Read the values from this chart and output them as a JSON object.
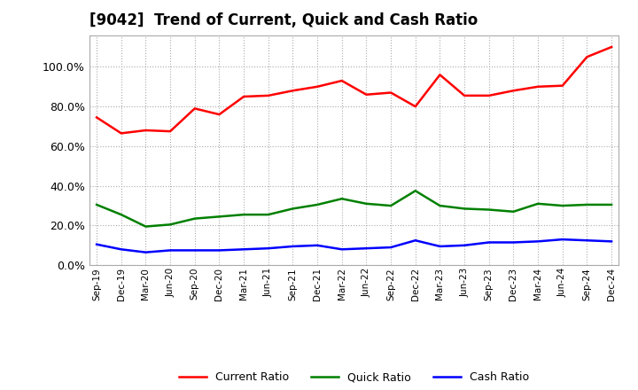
{
  "title": "[9042]  Trend of Current, Quick and Cash Ratio",
  "x_labels": [
    "Sep-19",
    "Dec-19",
    "Mar-20",
    "Jun-20",
    "Sep-20",
    "Dec-20",
    "Mar-21",
    "Jun-21",
    "Sep-21",
    "Dec-21",
    "Mar-22",
    "Jun-22",
    "Sep-22",
    "Dec-22",
    "Mar-23",
    "Jun-23",
    "Sep-23",
    "Dec-23",
    "Mar-24",
    "Jun-24",
    "Sep-24",
    "Dec-24"
  ],
  "current_ratio": [
    74.5,
    66.5,
    68.0,
    67.5,
    79.0,
    76.0,
    85.0,
    85.5,
    88.0,
    90.0,
    93.0,
    86.0,
    87.0,
    80.0,
    96.0,
    85.5,
    85.5,
    88.0,
    90.0,
    90.5,
    105.0,
    110.0
  ],
  "quick_ratio": [
    30.5,
    25.5,
    19.5,
    20.5,
    23.5,
    24.5,
    25.5,
    25.5,
    28.5,
    30.5,
    33.5,
    31.0,
    30.0,
    37.5,
    30.0,
    28.5,
    28.0,
    27.0,
    31.0,
    30.0,
    30.5,
    30.5
  ],
  "cash_ratio": [
    10.5,
    8.0,
    6.5,
    7.5,
    7.5,
    7.5,
    8.0,
    8.5,
    9.5,
    10.0,
    8.0,
    8.5,
    9.0,
    12.5,
    9.5,
    10.0,
    11.5,
    11.5,
    12.0,
    13.0,
    12.5,
    12.0
  ],
  "current_color": "#FF0000",
  "quick_color": "#008000",
  "cash_color": "#0000FF",
  "bg_color": "#FFFFFF",
  "plot_bg_color": "#FFFFFF",
  "grid_color": "#AAAAAA",
  "ylim": [
    0,
    116
  ],
  "yticks": [
    0,
    20,
    40,
    60,
    80,
    100
  ],
  "title_fontsize": 12,
  "legend_labels": [
    "Current Ratio",
    "Quick Ratio",
    "Cash Ratio"
  ]
}
